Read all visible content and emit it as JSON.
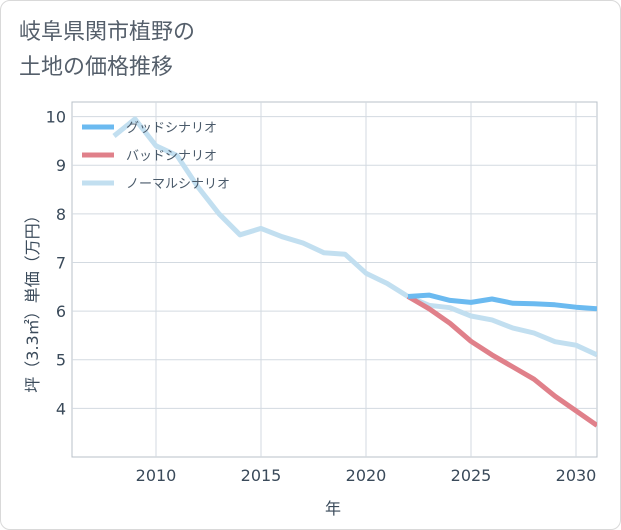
{
  "title_lines": [
    "岐阜県関市植野の",
    "土地の価格推移"
  ],
  "chart_data": {
    "type": "line",
    "xlabel": "年",
    "ylabel": "坪（3.3㎡）単価（万円）",
    "xlim": [
      2006,
      2031
    ],
    "ylim": [
      3,
      10.3
    ],
    "xticks": [
      2010,
      2015,
      2020,
      2025,
      2030
    ],
    "yticks": [
      4,
      5,
      6,
      7,
      8,
      9,
      10
    ],
    "grid": true,
    "legend_position": "top-left",
    "series": [
      {
        "name": "グッドシナリオ",
        "color": "#6bbaf0",
        "x": [
          2022,
          2023,
          2024,
          2025,
          2026,
          2027,
          2028,
          2029,
          2030,
          2031
        ],
        "values": [
          6.3,
          6.33,
          6.22,
          6.18,
          6.25,
          6.16,
          6.15,
          6.13,
          6.08,
          6.05
        ]
      },
      {
        "name": "バッドシナリオ",
        "color": "#e0808a",
        "x": [
          2022,
          2023,
          2024,
          2025,
          2026,
          2027,
          2028,
          2029,
          2030,
          2031
        ],
        "values": [
          6.3,
          6.05,
          5.75,
          5.38,
          5.1,
          4.85,
          4.6,
          4.25,
          3.95,
          3.65
        ]
      },
      {
        "name": "ノーマルシナリオ",
        "color": "#c2dff0",
        "x": [
          2008,
          2009,
          2010,
          2011,
          2012,
          2013,
          2014,
          2015,
          2016,
          2017,
          2018,
          2019,
          2020,
          2021,
          2022,
          2023,
          2024,
          2025,
          2026,
          2027,
          2028,
          2029,
          2030,
          2031
        ],
        "values": [
          9.6,
          9.95,
          9.4,
          9.2,
          8.55,
          8.0,
          7.57,
          7.7,
          7.53,
          7.4,
          7.2,
          7.17,
          6.78,
          6.57,
          6.3,
          6.12,
          6.07,
          5.9,
          5.82,
          5.65,
          5.55,
          5.37,
          5.3,
          5.1
        ]
      }
    ]
  }
}
